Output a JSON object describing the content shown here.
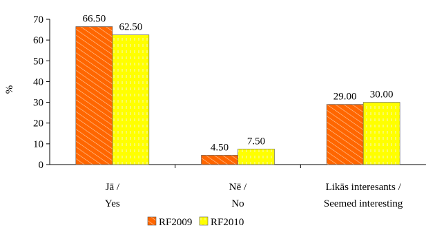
{
  "chart_data": {
    "type": "bar",
    "ylabel": "%",
    "ylim": [
      0,
      70
    ],
    "yticks": [
      0,
      10,
      20,
      30,
      40,
      50,
      60,
      70
    ],
    "grid": false,
    "legend_position": "bottom",
    "categories": [
      {
        "line1": "Jā /",
        "line2": "Yes"
      },
      {
        "line1": "Nē /",
        "line2": "No"
      },
      {
        "line1": "Likās interesants /",
        "line2": "Seemed interesting"
      }
    ],
    "series": [
      {
        "name": "RF2009",
        "color": "#ff6600",
        "pattern": "diagonal-hatch",
        "values": [
          66.5,
          4.5,
          29.0
        ],
        "labels": [
          "66.50",
          "4.50",
          "29.00"
        ]
      },
      {
        "name": "RF2010",
        "color": "#ffff00",
        "pattern": "vertical-dash",
        "values": [
          62.5,
          7.5,
          30.0
        ],
        "labels": [
          "62.50",
          "7.50",
          "30.00"
        ]
      }
    ]
  }
}
